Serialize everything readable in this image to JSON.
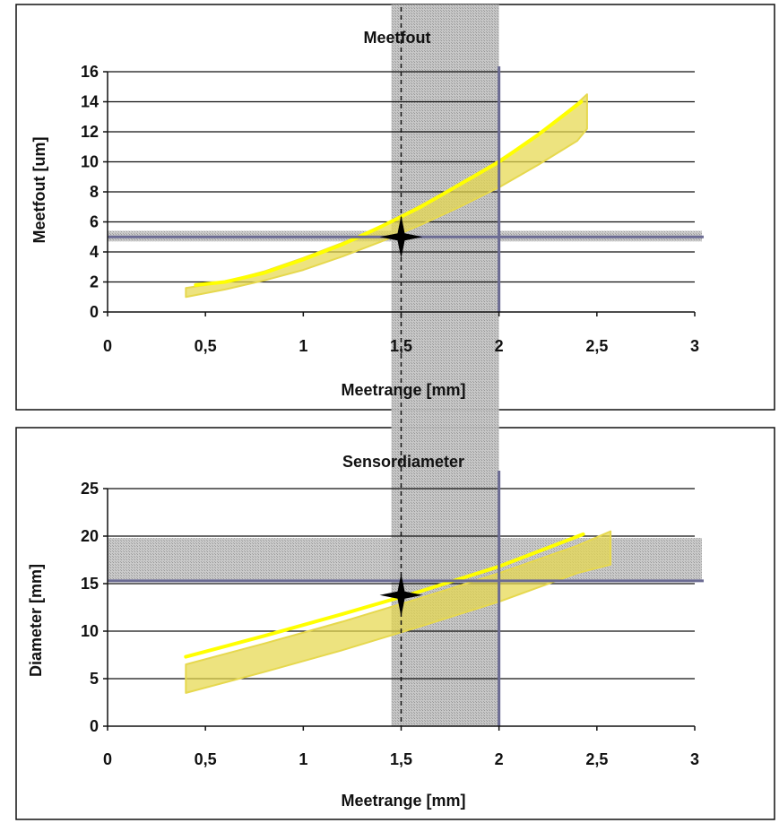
{
  "chart_data": [
    {
      "type": "line",
      "title": "Meetfout",
      "xlabel": "Meetrange [mm]",
      "ylabel": "Meetfout [um]",
      "xlim": [
        0,
        3
      ],
      "ylim": [
        0,
        16
      ],
      "x_ticks": [
        "0",
        "0,5",
        "1",
        "1,5",
        "2",
        "2,5",
        "3"
      ],
      "y_ticks": [
        "0",
        "2",
        "4",
        "6",
        "8",
        "10",
        "12",
        "14",
        "16"
      ],
      "grid": "horizontal",
      "band": {
        "upper": [
          [
            0.4,
            1.6
          ],
          [
            0.6,
            2.0
          ],
          [
            0.8,
            2.7
          ],
          [
            1.0,
            3.6
          ],
          [
            1.2,
            4.6
          ],
          [
            1.4,
            5.7
          ],
          [
            1.6,
            7.1
          ],
          [
            1.8,
            8.5
          ],
          [
            2.0,
            10.1
          ],
          [
            2.2,
            11.8
          ],
          [
            2.4,
            13.9
          ],
          [
            2.45,
            14.5
          ]
        ],
        "lower": [
          [
            0.4,
            1.0
          ],
          [
            0.6,
            1.5
          ],
          [
            0.8,
            2.1
          ],
          [
            1.0,
            2.8
          ],
          [
            1.2,
            3.7
          ],
          [
            1.4,
            4.7
          ],
          [
            1.6,
            5.8
          ],
          [
            1.8,
            7.0
          ],
          [
            2.0,
            8.3
          ],
          [
            2.2,
            9.8
          ],
          [
            2.4,
            11.4
          ],
          [
            2.45,
            12.2
          ]
        ]
      },
      "series": [
        {
          "values_xy": [
            [
              0.45,
              1.8
            ],
            [
              0.6,
              2.0
            ],
            [
              0.8,
              2.6
            ],
            [
              1.0,
              3.5
            ],
            [
              1.2,
              4.5
            ],
            [
              1.4,
              5.7
            ],
            [
              1.6,
              7.0
            ],
            [
              1.8,
              8.5
            ],
            [
              2.0,
              10.0
            ],
            [
              2.2,
              11.8
            ],
            [
              2.42,
              14.0
            ]
          ]
        }
      ],
      "ref_x": 2.0,
      "ref_y": 5.0,
      "ref_y_hatch": [
        4.7,
        5.4
      ],
      "cursor_x": 1.5,
      "marker": [
        1.5,
        5.0
      ],
      "colors": {
        "curve": "#ffff00",
        "band": "#e6d84e",
        "ref": "#6b6b93",
        "hatch": "#b0b0c8"
      }
    },
    {
      "type": "line",
      "title": "Sensordiameter",
      "xlabel": "Meetrange [mm]",
      "ylabel": "Diameter [mm]",
      "xlim": [
        0,
        3
      ],
      "ylim": [
        0,
        25
      ],
      "x_ticks": [
        "0",
        "0,5",
        "1",
        "1,5",
        "2",
        "2,5",
        "3"
      ],
      "y_ticks": [
        "0",
        "5",
        "10",
        "15",
        "20",
        "25"
      ],
      "grid": "horizontal",
      "band": {
        "upper": [
          [
            0.4,
            6.5
          ],
          [
            0.8,
            8.7
          ],
          [
            1.2,
            11.0
          ],
          [
            1.6,
            13.5
          ],
          [
            2.0,
            16.1
          ],
          [
            2.4,
            19.0
          ],
          [
            2.57,
            20.5
          ]
        ],
        "lower": [
          [
            0.4,
            3.5
          ],
          [
            0.8,
            5.7
          ],
          [
            1.2,
            8.0
          ],
          [
            1.6,
            10.5
          ],
          [
            2.0,
            13.1
          ],
          [
            2.4,
            16.1
          ],
          [
            2.57,
            17.0
          ]
        ]
      },
      "series": [
        {
          "values_xy": [
            [
              0.4,
              7.3
            ],
            [
              0.8,
              9.5
            ],
            [
              1.2,
              11.8
            ],
            [
              1.6,
              14.2
            ],
            [
              2.0,
              16.8
            ],
            [
              2.43,
              20.2
            ]
          ]
        }
      ],
      "ref_x": 2.0,
      "ref_y": 15.3,
      "ref_y_hatch": [
        15.3,
        19.8
      ],
      "cursor_x": 1.5,
      "marker": [
        1.5,
        13.8
      ],
      "colors": {
        "curve": "#ffff00",
        "band": "#e6d84e",
        "ref": "#6b6b93",
        "hatch": "#b0b0c8"
      }
    }
  ],
  "shared_vertical_hatch": [
    1.45,
    2.0
  ]
}
